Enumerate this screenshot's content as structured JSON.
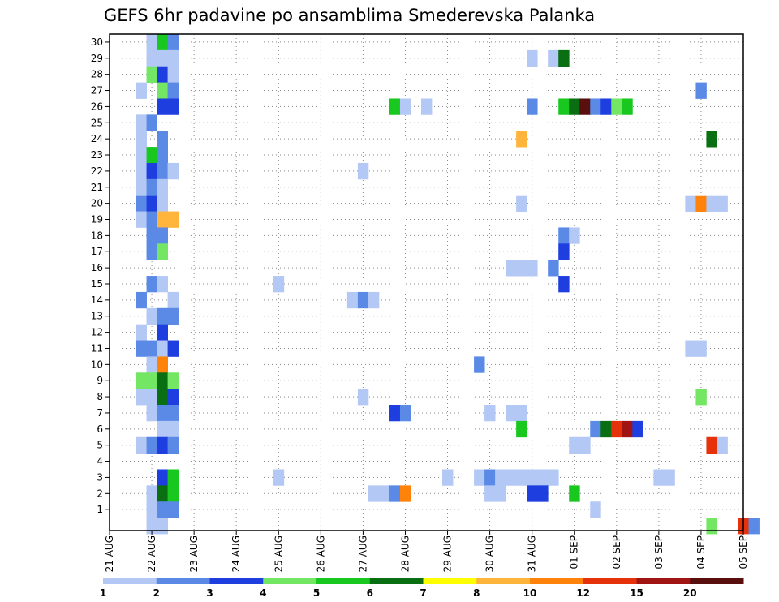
{
  "chart_data": {
    "type": "heatmap",
    "title": "GEFS 6hr padavine po ansamblima Smederevska Palanka",
    "xlabel": "",
    "ylabel": "",
    "x_tick_labels": [
      "21 AUG",
      "22 AUG",
      "23 AUG",
      "24 AUG",
      "25 AUG",
      "26 AUG",
      "27 AUG",
      "28 AUG",
      "29 AUG",
      "30 AUG",
      "31 AUG",
      "01 SEP",
      "02 SEP",
      "03 SEP",
      "04 SEP",
      "05 SEP"
    ],
    "members": [
      1,
      2,
      3,
      4,
      5,
      6,
      7,
      8,
      9,
      10,
      11,
      12,
      13,
      14,
      15,
      16,
      17,
      18,
      19,
      20,
      21,
      22,
      23,
      24,
      25,
      26,
      27,
      28,
      29,
      30
    ],
    "x_range": [
      "21 AUG 00",
      "05 SEP 00"
    ],
    "time_step_hours": 6,
    "grid": true,
    "legend_position": "bottom",
    "colorbar": {
      "levels": [
        "1",
        "2",
        "3",
        "4",
        "5",
        "6",
        "7",
        "8",
        "10",
        "12",
        "15",
        "20"
      ],
      "colors": [
        "#b4c8f5",
        "#5a8ae6",
        "#1e3ee0",
        "#73e664",
        "#19c81e",
        "#0a6e12",
        "#ffff00",
        "#ffb43c",
        "#ff820a",
        "#e6320a",
        "#a01414",
        "#5a0f0f"
      ]
    },
    "cells": [
      [
        0,
        30,
        22.0,
        0
      ],
      [
        0,
        30,
        22.25,
        4
      ],
      [
        0,
        30,
        22.5,
        1
      ],
      [
        0,
        29,
        22.0,
        0
      ],
      [
        0,
        29,
        22.25,
        0
      ],
      [
        0,
        29,
        22.5,
        0
      ],
      [
        0,
        29,
        31.0,
        0
      ],
      [
        0,
        29,
        31.5,
        0
      ],
      [
        0,
        29,
        31.75,
        5
      ],
      [
        0,
        28,
        22.0,
        3
      ],
      [
        0,
        28,
        22.25,
        2
      ],
      [
        0,
        28,
        22.5,
        0
      ],
      [
        0,
        27,
        21.75,
        0
      ],
      [
        0,
        27,
        22.25,
        3
      ],
      [
        0,
        27,
        22.5,
        1
      ],
      [
        0,
        27,
        35.0,
        1
      ],
      [
        0,
        26,
        22.25,
        2
      ],
      [
        0,
        26,
        22.5,
        2
      ],
      [
        0,
        26,
        27.75,
        4
      ],
      [
        0,
        26,
        28.0,
        0
      ],
      [
        0,
        26,
        28.5,
        0
      ],
      [
        0,
        26,
        31.0,
        1
      ],
      [
        0,
        26,
        31.75,
        4
      ],
      [
        0,
        26,
        32.0,
        5
      ],
      [
        0,
        26,
        32.25,
        11
      ],
      [
        0,
        26,
        32.5,
        1
      ],
      [
        0,
        26,
        32.75,
        2
      ],
      [
        0,
        26,
        33.0,
        3
      ],
      [
        0,
        26,
        33.25,
        4
      ],
      [
        0,
        25,
        21.75,
        0
      ],
      [
        0,
        25,
        22.0,
        1
      ],
      [
        0,
        24,
        21.75,
        0
      ],
      [
        0,
        24,
        22.25,
        1
      ],
      [
        0,
        24,
        30.75,
        7
      ],
      [
        0,
        24,
        35.25,
        5
      ],
      [
        0,
        23,
        21.75,
        0
      ],
      [
        0,
        23,
        22.0,
        4
      ],
      [
        0,
        23,
        22.25,
        1
      ],
      [
        0,
        22,
        21.75,
        0
      ],
      [
        0,
        22,
        22.0,
        2
      ],
      [
        0,
        22,
        22.25,
        1
      ],
      [
        0,
        22,
        22.5,
        0
      ],
      [
        0,
        22,
        27.0,
        0
      ],
      [
        0,
        21,
        21.75,
        0
      ],
      [
        0,
        21,
        22.0,
        1
      ],
      [
        0,
        21,
        22.25,
        0
      ],
      [
        0,
        20,
        21.75,
        1
      ],
      [
        0,
        20,
        22.0,
        2
      ],
      [
        0,
        20,
        22.25,
        0
      ],
      [
        0,
        20,
        30.75,
        0
      ],
      [
        0,
        20,
        34.75,
        0
      ],
      [
        0,
        20,
        35.0,
        8
      ],
      [
        0,
        20,
        35.25,
        0
      ],
      [
        0,
        20,
        35.5,
        0
      ],
      [
        0,
        19,
        21.75,
        0
      ],
      [
        0,
        19,
        22.0,
        1
      ],
      [
        0,
        19,
        22.25,
        7
      ],
      [
        0,
        19,
        22.5,
        7
      ],
      [
        0,
        18,
        22.0,
        1
      ],
      [
        0,
        18,
        22.25,
        1
      ],
      [
        0,
        18,
        31.75,
        1
      ],
      [
        0,
        18,
        32.0,
        0
      ],
      [
        0,
        17,
        22.0,
        1
      ],
      [
        0,
        17,
        22.25,
        3
      ],
      [
        0,
        17,
        31.75,
        2
      ],
      [
        0,
        16,
        30.5,
        0
      ],
      [
        0,
        16,
        30.75,
        0
      ],
      [
        0,
        16,
        31.0,
        0
      ],
      [
        0,
        16,
        31.5,
        1
      ],
      [
        0,
        15,
        22.0,
        1
      ],
      [
        0,
        15,
        22.25,
        0
      ],
      [
        0,
        15,
        25.0,
        0
      ],
      [
        0,
        15,
        31.75,
        2
      ],
      [
        0,
        14,
        21.75,
        1
      ],
      [
        0,
        14,
        22.5,
        0
      ],
      [
        0,
        14,
        26.75,
        0
      ],
      [
        0,
        14,
        27.0,
        1
      ],
      [
        0,
        14,
        27.25,
        0
      ],
      [
        0,
        13,
        22.0,
        0
      ],
      [
        0,
        13,
        22.25,
        1
      ],
      [
        0,
        13,
        22.5,
        1
      ],
      [
        0,
        12,
        21.75,
        0
      ],
      [
        0,
        12,
        22.25,
        2
      ],
      [
        0,
        11,
        21.75,
        1
      ],
      [
        0,
        11,
        22.0,
        1
      ],
      [
        0,
        11,
        22.25,
        0
      ],
      [
        0,
        11,
        22.5,
        2
      ],
      [
        0,
        11,
        34.75,
        0
      ],
      [
        0,
        11,
        35.0,
        0
      ],
      [
        0,
        10,
        22.0,
        0
      ],
      [
        0,
        10,
        22.25,
        8
      ],
      [
        0,
        10,
        29.75,
        1
      ],
      [
        0,
        9,
        21.75,
        3
      ],
      [
        0,
        9,
        22.0,
        3
      ],
      [
        0,
        9,
        22.25,
        5
      ],
      [
        0,
        9,
        22.5,
        3
      ],
      [
        0,
        8,
        21.75,
        0
      ],
      [
        0,
        8,
        22.0,
        0
      ],
      [
        0,
        8,
        22.25,
        5
      ],
      [
        0,
        8,
        22.5,
        2
      ],
      [
        0,
        8,
        27.0,
        0
      ],
      [
        0,
        8,
        35.0,
        3
      ],
      [
        0,
        7,
        22.0,
        0
      ],
      [
        0,
        7,
        22.25,
        1
      ],
      [
        0,
        7,
        22.5,
        1
      ],
      [
        0,
        7,
        27.75,
        2
      ],
      [
        0,
        7,
        28.0,
        1
      ],
      [
        0,
        7,
        30.0,
        0
      ],
      [
        0,
        7,
        30.5,
        0
      ],
      [
        0,
        7,
        30.75,
        0
      ],
      [
        0,
        6,
        22.25,
        0
      ],
      [
        0,
        6,
        22.5,
        0
      ],
      [
        0,
        6,
        30.75,
        4
      ],
      [
        0,
        6,
        32.5,
        1
      ],
      [
        0,
        6,
        32.75,
        5
      ],
      [
        0,
        6,
        33.0,
        9
      ],
      [
        0,
        6,
        33.25,
        10
      ],
      [
        0,
        6,
        33.5,
        2
      ],
      [
        0,
        5,
        21.75,
        0
      ],
      [
        0,
        5,
        22.0,
        1
      ],
      [
        0,
        5,
        22.25,
        2
      ],
      [
        0,
        5,
        22.5,
        1
      ],
      [
        0,
        5,
        32.0,
        0
      ],
      [
        0,
        5,
        32.25,
        0
      ],
      [
        0,
        5,
        35.25,
        9
      ],
      [
        0,
        5,
        35.5,
        0
      ],
      [
        0,
        3,
        22.25,
        2
      ],
      [
        0,
        3,
        22.5,
        4
      ],
      [
        0,
        3,
        25.0,
        0
      ],
      [
        0,
        3,
        29.0,
        0
      ],
      [
        0,
        3,
        29.75,
        0
      ],
      [
        0,
        3,
        30.0,
        1
      ],
      [
        0,
        3,
        30.25,
        0
      ],
      [
        0,
        3,
        30.5,
        0
      ],
      [
        0,
        3,
        30.75,
        0
      ],
      [
        0,
        3,
        31.0,
        0
      ],
      [
        0,
        3,
        31.25,
        0
      ],
      [
        0,
        3,
        31.5,
        0
      ],
      [
        0,
        3,
        34.0,
        0
      ],
      [
        0,
        3,
        34.25,
        0
      ],
      [
        0,
        2,
        22.0,
        0
      ],
      [
        0,
        2,
        22.25,
        5
      ],
      [
        0,
        2,
        22.5,
        4
      ],
      [
        0,
        2,
        27.25,
        0
      ],
      [
        0,
        2,
        27.5,
        0
      ],
      [
        0,
        2,
        27.75,
        1
      ],
      [
        0,
        2,
        28.0,
        8
      ],
      [
        0,
        2,
        30.0,
        0
      ],
      [
        0,
        2,
        30.25,
        0
      ],
      [
        0,
        2,
        31.0,
        2
      ],
      [
        0,
        2,
        31.25,
        2
      ],
      [
        0,
        2,
        32.0,
        4
      ],
      [
        0,
        1,
        22.0,
        0
      ],
      [
        0,
        1,
        22.25,
        1
      ],
      [
        0,
        1,
        22.5,
        1
      ],
      [
        0,
        1,
        32.5,
        0
      ],
      [
        0,
        0,
        22.0,
        0
      ],
      [
        0,
        0,
        22.25,
        0
      ],
      [
        0,
        0,
        35.25,
        3
      ],
      [
        0,
        0,
        36.0,
        9
      ],
      [
        0,
        0,
        36.25,
        1
      ]
    ]
  }
}
